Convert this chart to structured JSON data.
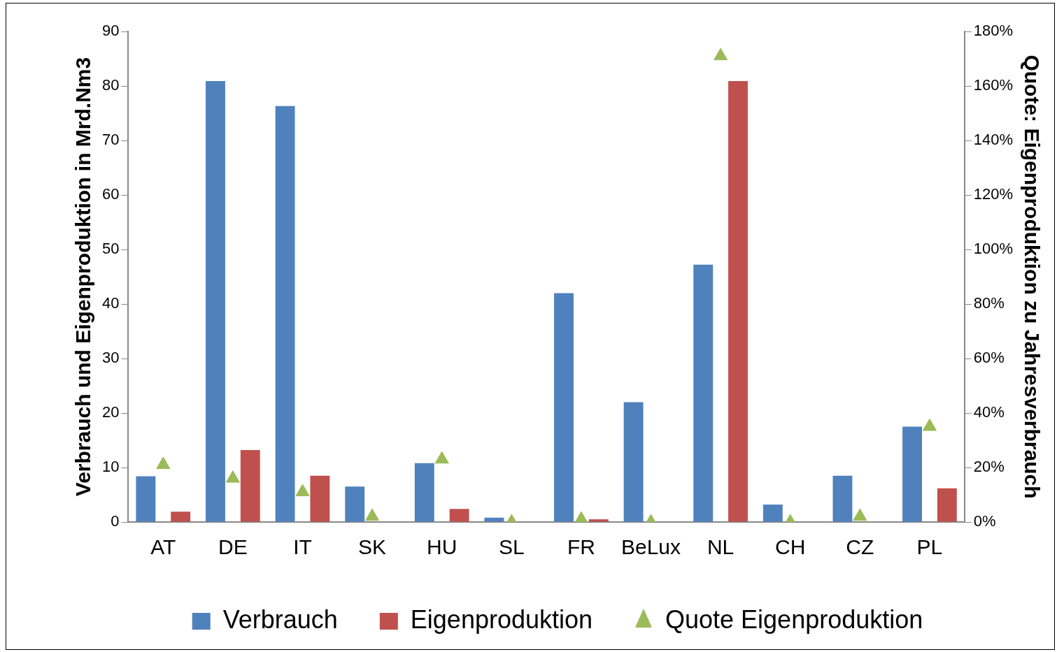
{
  "chart_data": {
    "type": "bar",
    "ylabel": "Verbrauch und Eigenproduktion in Mrd.Nm3",
    "y2label": "Quote: Eigenproduktion zu Jahresverbrauch",
    "categories": [
      "AT",
      "DE",
      "IT",
      "SK",
      "HU",
      "SL",
      "FR",
      "BeLux",
      "NL",
      "CH",
      "CZ",
      "PL"
    ],
    "series": [
      {
        "name": "Verbrauch",
        "color": "#4f81bd",
        "values": [
          8.4,
          80.9,
          76.3,
          6.5,
          10.8,
          0.8,
          42.0,
          22.0,
          47.2,
          3.2,
          8.5,
          17.5
        ]
      },
      {
        "name": "Eigenproduktion",
        "color": "#c0504d",
        "values": [
          1.9,
          13.2,
          8.5,
          null,
          2.4,
          0,
          0.5,
          0,
          80.9,
          0,
          null,
          6.2
        ]
      },
      {
        "name": "Quote Eigenproduktion",
        "type": "scatter",
        "axis": "y2",
        "marker": "triangle",
        "color": "#9bbb59",
        "x": [
          "AT",
          "DE",
          "IT",
          "SK",
          "HU",
          "SL",
          "FR",
          "BeLux",
          "NL",
          "CH",
          "CZ",
          "PL"
        ],
        "values": [
          21,
          16,
          11,
          2,
          23,
          0,
          1,
          0,
          171,
          0,
          2,
          35
        ]
      }
    ],
    "ylim": [
      0,
      90
    ],
    "yticks": [
      0,
      10,
      20,
      30,
      40,
      50,
      60,
      70,
      80,
      90
    ],
    "y2lim": [
      0,
      180
    ],
    "y2ticks": [
      {
        "value": 0,
        "label": "0%"
      },
      {
        "value": 20,
        "label": "20%"
      },
      {
        "value": 40,
        "label": "40%"
      },
      {
        "value": 60,
        "label": "60%"
      },
      {
        "value": 80,
        "label": "80%"
      },
      {
        "value": 100,
        "label": "100%"
      },
      {
        "value": 120,
        "label": "120%"
      },
      {
        "value": 140,
        "label": "140%"
      },
      {
        "value": 160,
        "label": "160%"
      },
      {
        "value": 180,
        "label": "180%"
      }
    ],
    "grid": false,
    "legend": "bottom"
  }
}
